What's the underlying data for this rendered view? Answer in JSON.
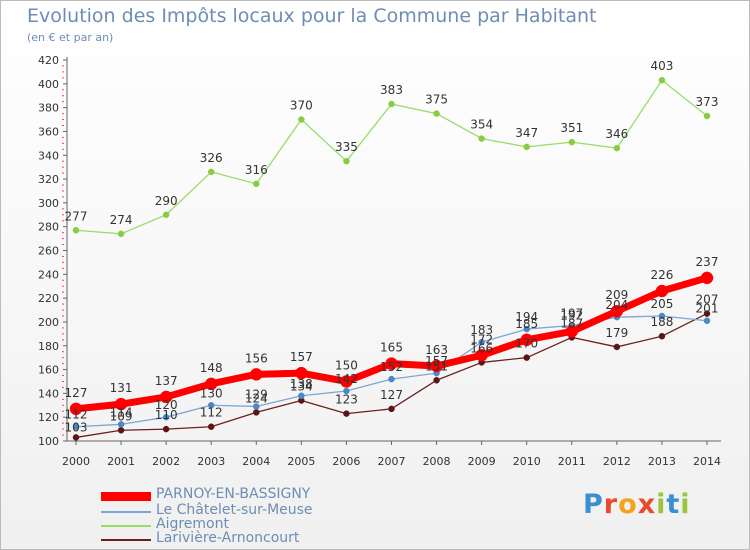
{
  "header": {
    "title": "Evolution des Impôts locaux pour la Commune par Habitant",
    "subtitle": "(en € et par an)"
  },
  "brand": {
    "letters": [
      "P",
      "r",
      "o",
      "x",
      "i",
      "t",
      "i"
    ],
    "colors": [
      "#3a8fd0",
      "#e84a2c",
      "#f3a41b",
      "#e84a2c",
      "#9bc53d",
      "#3a8fd0",
      "#9bc53d"
    ]
  },
  "chart_data": {
    "type": "line",
    "title": "Evolution des Impôts locaux pour la Commune par Habitant",
    "subtitle": "(en € et par an)",
    "x": [
      2000,
      2001,
      2002,
      2003,
      2004,
      2005,
      2006,
      2007,
      2008,
      2009,
      2010,
      2011,
      2012,
      2013,
      2014
    ],
    "ylim": [
      100,
      420
    ],
    "yticks": [
      100,
      120,
      140,
      160,
      180,
      200,
      220,
      240,
      260,
      280,
      300,
      320,
      340,
      360,
      380,
      400,
      420
    ],
    "grid": false,
    "legend_position": "bottom-left",
    "series": [
      {
        "name": "PARNOY-EN-BASSIGNY",
        "color": "#ff0000",
        "values": [
          127,
          131,
          137,
          148,
          156,
          157,
          150,
          165,
          163,
          172,
          185,
          192,
          209,
          226,
          237
        ]
      },
      {
        "name": "Le Châtelet-sur-Meuse",
        "color": "#7aa7d6",
        "values": [
          112,
          114,
          120,
          130,
          129,
          138,
          142,
          152,
          157,
          183,
          194,
          197,
          204,
          205,
          201
        ]
      },
      {
        "name": "Aigremont",
        "color": "#99dd66",
        "values": [
          277,
          274,
          290,
          326,
          316,
          370,
          335,
          383,
          375,
          354,
          347,
          351,
          346,
          403,
          373
        ]
      },
      {
        "name": "Larivière-Arnoncourt",
        "color": "#6b2020",
        "values": [
          103,
          109,
          110,
          112,
          124,
          134,
          123,
          127,
          151,
          166,
          170,
          187,
          179,
          188,
          207
        ]
      }
    ]
  }
}
